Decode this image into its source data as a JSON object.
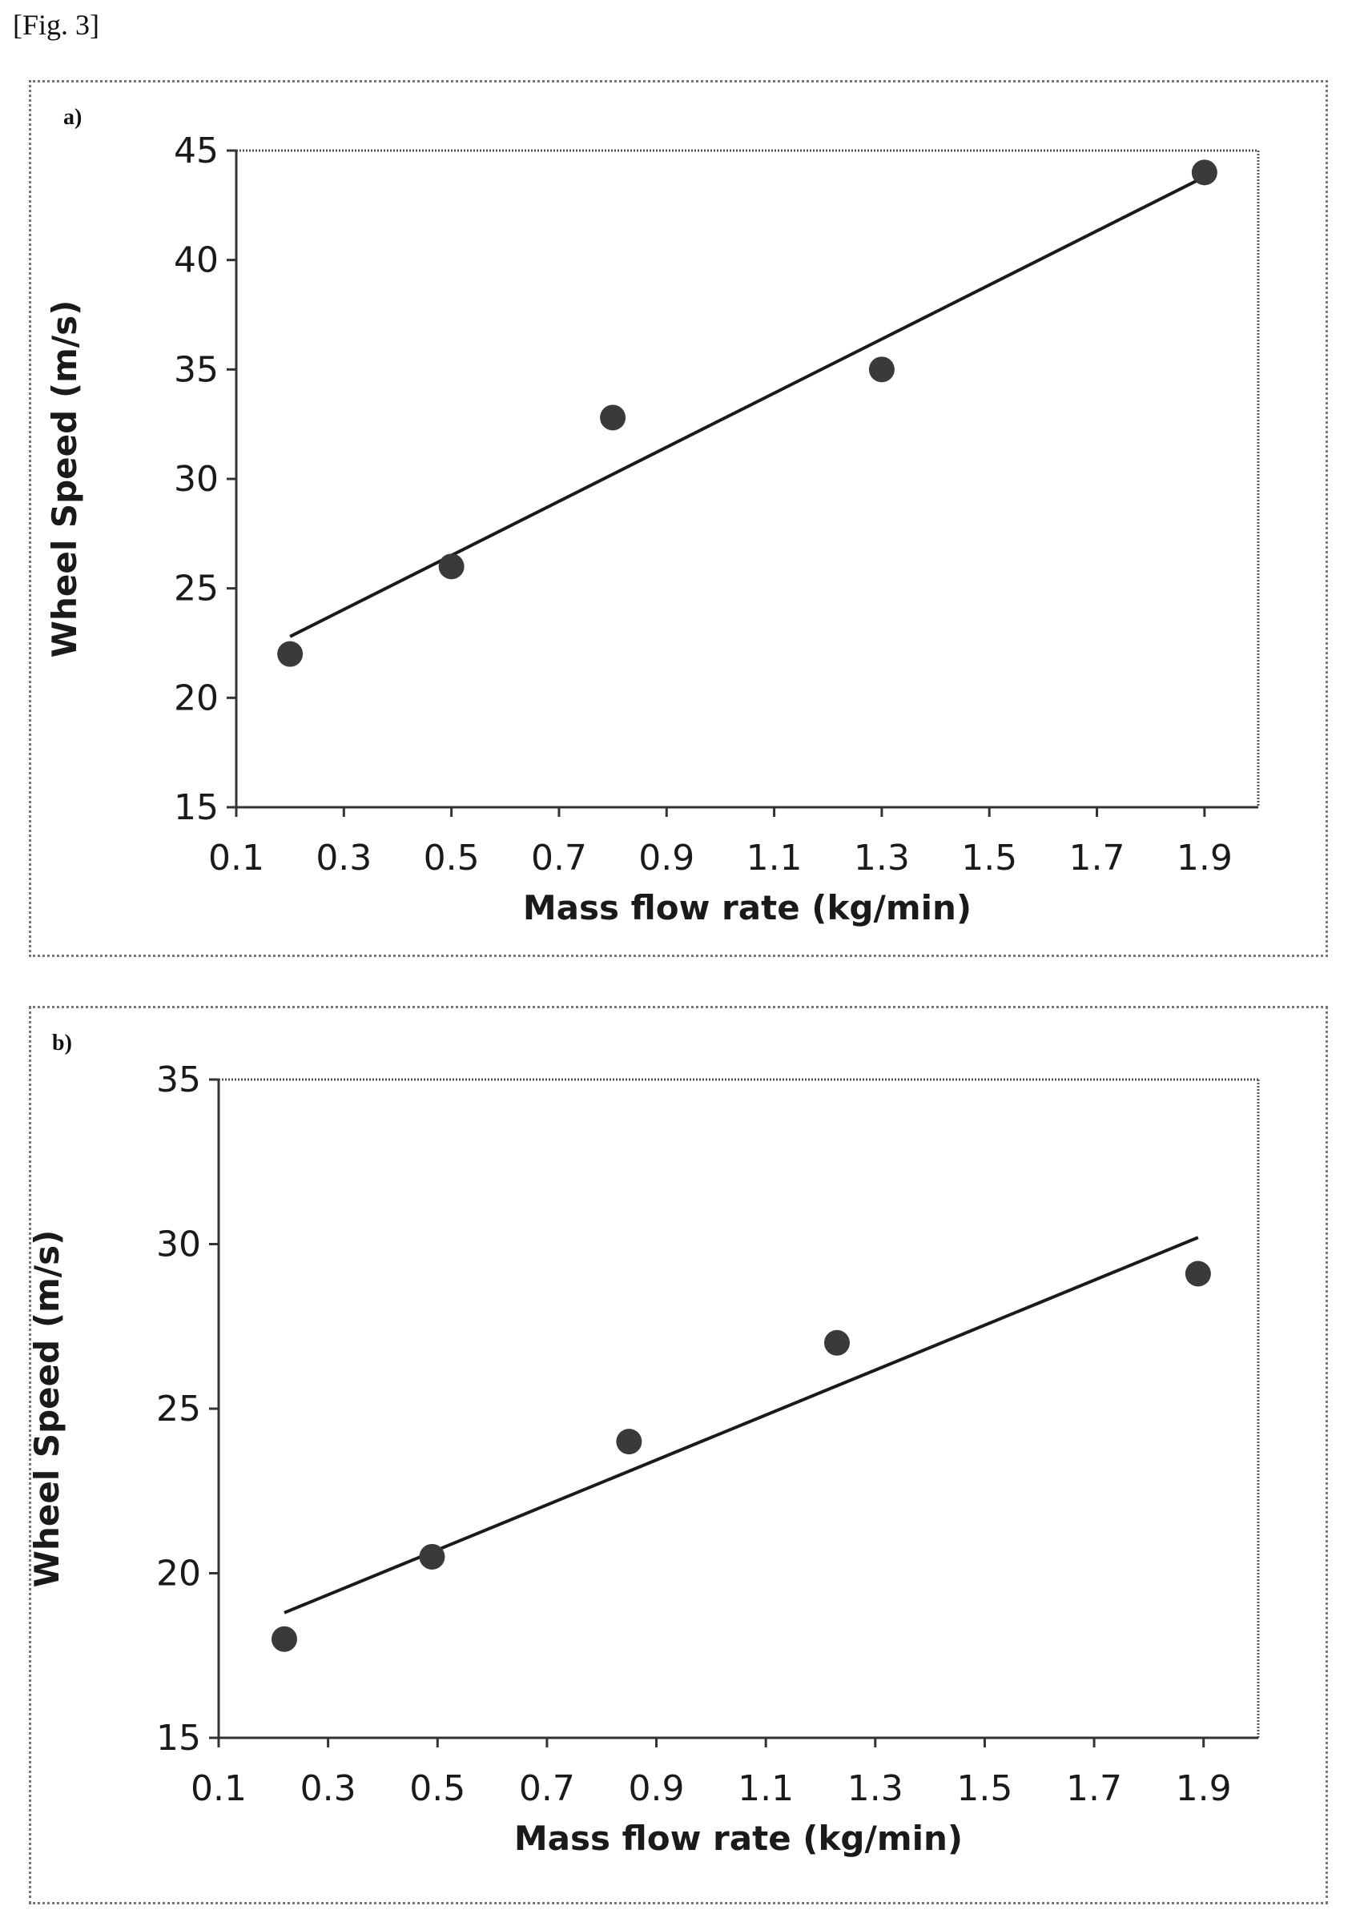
{
  "figure": {
    "caption": "[Fig. 3]"
  },
  "chart_data": [
    {
      "panel_label": "a)",
      "type": "scatter",
      "xlabel": "Mass flow rate (kg/min)",
      "ylabel": "Wheel Speed (m/s)",
      "xlim": [
        0.1,
        2.0
      ],
      "ylim": [
        15,
        45
      ],
      "xticks": [
        0.1,
        0.3,
        0.5,
        0.7,
        0.9,
        1.1,
        1.3,
        1.5,
        1.7,
        1.9
      ],
      "xtick_labels": [
        "0.1",
        "0.3",
        "0.5",
        "0.7",
        "0.9",
        "1.1",
        "1.3",
        "1.5",
        "1.7",
        "1.9"
      ],
      "yticks": [
        15,
        20,
        25,
        30,
        35,
        40,
        45
      ],
      "ytick_labels": [
        "15",
        "20",
        "25",
        "30",
        "35",
        "40",
        "45"
      ],
      "grid": false,
      "series": [
        {
          "x": [
            0.2,
            0.5,
            0.8,
            1.3,
            1.9
          ],
          "y": [
            22,
            26,
            32.8,
            35,
            44
          ],
          "marker": "circle",
          "color": "#3a3a3a"
        }
      ],
      "trendline": {
        "x": [
          0.2,
          1.9
        ],
        "y": [
          22.8,
          43.8
        ],
        "color": "#1a1a1a"
      }
    },
    {
      "panel_label": "b)",
      "type": "scatter",
      "xlabel": "Mass flow rate (kg/min)",
      "ylabel": "Wheel Speed (m/s)",
      "xlim": [
        0.1,
        2.0
      ],
      "ylim": [
        15,
        35
      ],
      "xticks": [
        0.1,
        0.3,
        0.5,
        0.7,
        0.9,
        1.1,
        1.3,
        1.5,
        1.7,
        1.9
      ],
      "xtick_labels": [
        "0.1",
        "0.3",
        "0.5",
        "0.7",
        "0.9",
        "1.1",
        "1.3",
        "1.5",
        "1.7",
        "1.9"
      ],
      "yticks": [
        15,
        20,
        25,
        30,
        35
      ],
      "ytick_labels": [
        "15",
        "20",
        "25",
        "30",
        "35"
      ],
      "grid": false,
      "series": [
        {
          "x": [
            0.22,
            0.49,
            0.85,
            1.23,
            1.89
          ],
          "y": [
            18,
            20.5,
            24,
            27,
            29.1
          ],
          "marker": "circle",
          "color": "#3a3a3a"
        }
      ],
      "trendline": {
        "x": [
          0.22,
          1.89
        ],
        "y": [
          18.8,
          30.2
        ],
        "color": "#1a1a1a"
      }
    }
  ]
}
